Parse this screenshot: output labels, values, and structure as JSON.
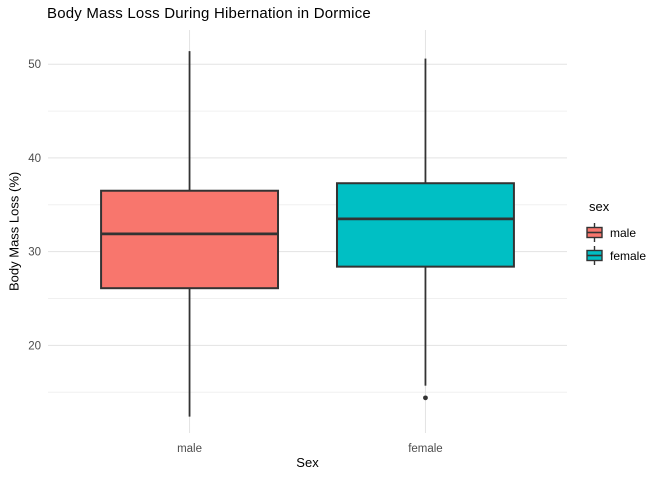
{
  "chart_data": {
    "type": "boxplot",
    "title": "Body Mass Loss During Hibernation in Dormice",
    "xlabel": "Sex",
    "ylabel": "Body Mass Loss (%)",
    "categories": [
      "male",
      "female"
    ],
    "yticks": [
      20,
      30,
      40,
      50
    ],
    "yminor": [
      15,
      25,
      35,
      45
    ],
    "ylim": [
      10.65,
      53.65
    ],
    "grid": "horizontal-and-vertical, light gray on white",
    "legend_position": "right",
    "series": [
      {
        "name": "male",
        "fill": "#F8766D",
        "whisker_min": 12.4,
        "q1": 26.1,
        "median": 31.9,
        "q3": 36.5,
        "whisker_max": 51.4,
        "outliers": []
      },
      {
        "name": "female",
        "fill": "#00BFC4",
        "whisker_min": 15.7,
        "q1": 28.4,
        "median": 33.5,
        "q3": 37.3,
        "whisker_max": 50.6,
        "outliers": [
          14.4
        ]
      }
    ],
    "legend": {
      "title": "sex",
      "entries": [
        {
          "label": "male",
          "color": "#F8766D"
        },
        {
          "label": "female",
          "color": "#00BFC4"
        }
      ]
    },
    "colors": {
      "box_line": "#333333",
      "tick_text": "#4D4D4D",
      "grid_major": "#E3E3E3",
      "grid_minor": "#F0F0F0"
    }
  }
}
